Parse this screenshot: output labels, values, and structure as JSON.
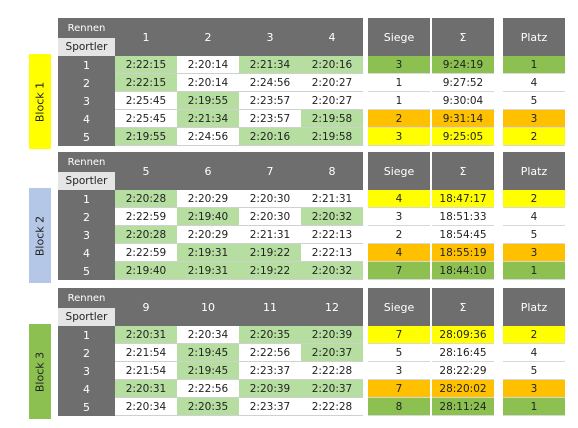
{
  "headers": {
    "rennen": "Rennen",
    "sportler": "Sportler",
    "siege": "Siege",
    "sum": "Σ",
    "platz": "Platz"
  },
  "colors": {
    "green": "#b6dea0",
    "yellow": "#ffff00",
    "orange": "#ffc000",
    "darkgreen": "#8cc152",
    "header": "#6e6e6e",
    "sportler": "#e0e0e0"
  },
  "blocks": [
    {
      "label": "Block 1",
      "label_color": "#ffff00",
      "races": [
        "1",
        "2",
        "3",
        "4"
      ],
      "rows": [
        {
          "n": "1",
          "times": [
            "2:22:15",
            "2:20:14",
            "2:21:34",
            "2:20:16"
          ],
          "hl": [
            1,
            0,
            1,
            1
          ],
          "siege": "3",
          "sum": "9:24:19",
          "platz": "1",
          "rc": "darkgreen"
        },
        {
          "n": "2",
          "times": [
            "2:22:15",
            "2:20:14",
            "2:24:56",
            "2:20:27"
          ],
          "hl": [
            1,
            0,
            0,
            0
          ],
          "siege": "1",
          "sum": "9:27:52",
          "platz": "4",
          "rc": ""
        },
        {
          "n": "3",
          "times": [
            "2:25:45",
            "2:19:55",
            "2:23:57",
            "2:20:27"
          ],
          "hl": [
            0,
            1,
            0,
            0
          ],
          "siege": "1",
          "sum": "9:30:04",
          "platz": "5",
          "rc": ""
        },
        {
          "n": "4",
          "times": [
            "2:25:45",
            "2:21:34",
            "2:23:57",
            "2:19:58"
          ],
          "hl": [
            0,
            1,
            0,
            1
          ],
          "siege": "2",
          "sum": "9:31:14",
          "platz": "3",
          "rc": "orange"
        },
        {
          "n": "5",
          "times": [
            "2:19:55",
            "2:24:56",
            "2:20:16",
            "2:19:58"
          ],
          "hl": [
            1,
            0,
            1,
            1
          ],
          "siege": "3",
          "sum": "9:25:05",
          "platz": "2",
          "rc": "yellow"
        }
      ]
    },
    {
      "label": "Block 2",
      "label_color": "#b4c7e7",
      "races": [
        "5",
        "6",
        "7",
        "8"
      ],
      "rows": [
        {
          "n": "1",
          "times": [
            "2:20:28",
            "2:20:29",
            "2:20:30",
            "2:21:31"
          ],
          "hl": [
            1,
            0,
            0,
            0
          ],
          "siege": "4",
          "sum": "18:47:17",
          "platz": "2",
          "rc": "yellow"
        },
        {
          "n": "2",
          "times": [
            "2:22:59",
            "2:19:40",
            "2:20:30",
            "2:20:32"
          ],
          "hl": [
            0,
            1,
            0,
            1
          ],
          "siege": "3",
          "sum": "18:51:33",
          "platz": "4",
          "rc": ""
        },
        {
          "n": "3",
          "times": [
            "2:20:28",
            "2:20:29",
            "2:21:31",
            "2:22:13"
          ],
          "hl": [
            1,
            0,
            0,
            0
          ],
          "siege": "2",
          "sum": "18:54:45",
          "platz": "5",
          "rc": ""
        },
        {
          "n": "4",
          "times": [
            "2:22:59",
            "2:19:31",
            "2:19:22",
            "2:22:13"
          ],
          "hl": [
            0,
            1,
            1,
            0
          ],
          "siege": "4",
          "sum": "18:55:19",
          "platz": "3",
          "rc": "orange"
        },
        {
          "n": "5",
          "times": [
            "2:19:40",
            "2:19:31",
            "2:19:22",
            "2:20:32"
          ],
          "hl": [
            1,
            1,
            1,
            1
          ],
          "siege": "7",
          "sum": "18:44:10",
          "platz": "1",
          "rc": "darkgreen"
        }
      ]
    },
    {
      "label": "Block 3",
      "label_color": "#8cc152",
      "races": [
        "9",
        "10",
        "11",
        "12"
      ],
      "rows": [
        {
          "n": "1",
          "times": [
            "2:20:31",
            "2:20:34",
            "2:20:35",
            "2:20:39"
          ],
          "hl": [
            1,
            0,
            1,
            1
          ],
          "siege": "7",
          "sum": "28:09:36",
          "platz": "2",
          "rc": "yellow"
        },
        {
          "n": "2",
          "times": [
            "2:21:54",
            "2:19:45",
            "2:22:56",
            "2:20:37"
          ],
          "hl": [
            0,
            1,
            0,
            1
          ],
          "siege": "5",
          "sum": "28:16:45",
          "platz": "4",
          "rc": ""
        },
        {
          "n": "3",
          "times": [
            "2:21:54",
            "2:19:45",
            "2:23:37",
            "2:22:28"
          ],
          "hl": [
            0,
            1,
            0,
            0
          ],
          "siege": "3",
          "sum": "28:22:29",
          "platz": "5",
          "rc": ""
        },
        {
          "n": "4",
          "times": [
            "2:20:31",
            "2:22:56",
            "2:20:39",
            "2:20:37"
          ],
          "hl": [
            1,
            0,
            1,
            1
          ],
          "siege": "7",
          "sum": "28:20:02",
          "platz": "3",
          "rc": "orange"
        },
        {
          "n": "5",
          "times": [
            "2:20:34",
            "2:20:35",
            "2:23:37",
            "2:22:28"
          ],
          "hl": [
            0,
            1,
            0,
            0
          ],
          "siege": "8",
          "sum": "28:11:24",
          "platz": "1",
          "rc": "darkgreen"
        }
      ]
    }
  ]
}
